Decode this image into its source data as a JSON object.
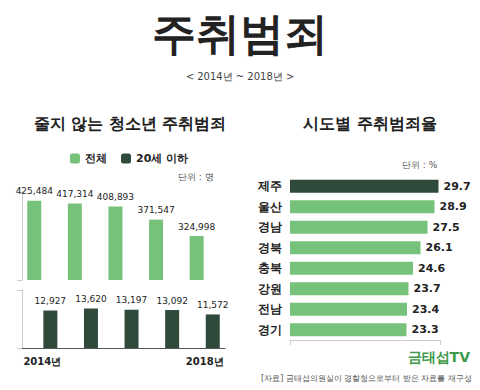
{
  "title": "주취범죄",
  "subtitle": "< 2014년 ~ 2018년 >",
  "source": "[자료] 금태섭의원실이 경찰청으로부터 받은 자료를 재구성",
  "logo": "금태섭TV",
  "chart_data": [
    {
      "type": "bar",
      "title": "줄지 않는 청소년 주취범죄",
      "unit": "단위 : 명",
      "categories": [
        "2014년",
        null,
        null,
        null,
        "2018년"
      ],
      "series": [
        {
          "name": "전체",
          "color": "#77c27a",
          "values": [
            425484,
            417314,
            408893,
            371547,
            324998
          ],
          "value_labels": [
            "425,484",
            "417,314",
            "408,893",
            "371,547",
            "324,998"
          ]
        },
        {
          "name": "20세 이하",
          "color": "#2f4a3b",
          "axis": "y2",
          "values": [
            12927,
            13620,
            13197,
            13092,
            11572
          ],
          "value_labels": [
            "12,927",
            "13,620",
            "13,197",
            "13,092",
            "11,572"
          ]
        }
      ],
      "ylim": [
        200000,
        450000
      ],
      "yticks": [
        200000,
        450000
      ],
      "y2lim": [
        0,
        20000
      ],
      "y2ticks": [
        0,
        20000
      ],
      "legend": "top",
      "grid": false,
      "data_labels": true,
      "tick_labels": "x"
    },
    {
      "type": "bar",
      "title": "시도별 주취범죄율",
      "unit": "단위 : %",
      "orientation": "horizontal",
      "categories": [
        "제주",
        "울산",
        "경남",
        "경북",
        "충북",
        "강원",
        "전남",
        "경기"
      ],
      "values": [
        29.7,
        28.9,
        27.5,
        26.1,
        24.6,
        23.7,
        23.4,
        23.3
      ],
      "colors": [
        "#2f4a3b",
        "#77c27a",
        "#77c27a",
        "#77c27a",
        "#77c27a",
        "#77c27a",
        "#77c27a",
        "#77c27a"
      ],
      "xlim": [
        0,
        30
      ],
      "xticks": [
        0,
        30
      ],
      "grid": false,
      "data_labels": true,
      "tick_labels": "y"
    }
  ]
}
